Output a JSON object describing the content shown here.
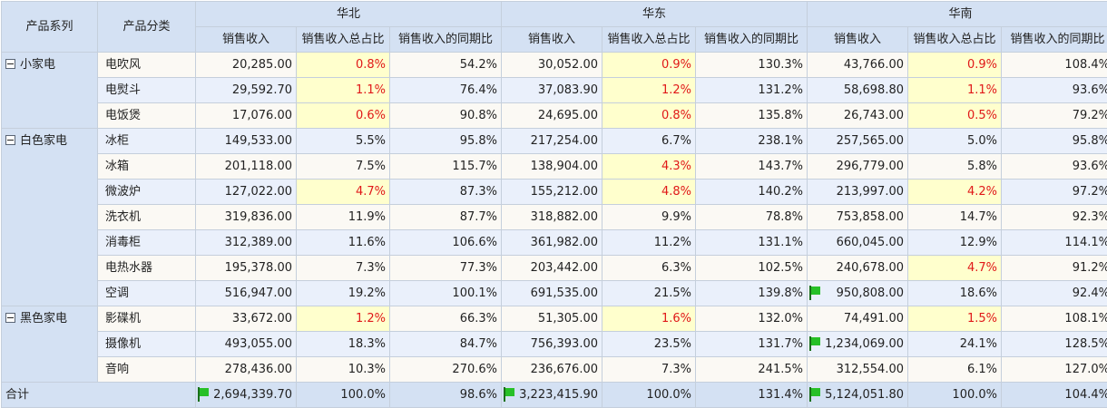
{
  "headers": {
    "series": "产品系列",
    "category": "产品分类",
    "regions": [
      "华北",
      "华东",
      "华南"
    ],
    "metrics": [
      "销售收入",
      "销售收入总占比",
      "销售收入的同期比"
    ]
  },
  "groups": [
    {
      "name": "小家电",
      "rows": [
        {
          "category": "电吹风",
          "values": [
            {
              "rev": "20,285.00",
              "share": "0.8%",
              "yoy": "54.2%",
              "hl": true
            },
            {
              "rev": "30,052.00",
              "share": "0.9%",
              "yoy": "130.3%",
              "hl": true
            },
            {
              "rev": "43,766.00",
              "share": "0.9%",
              "yoy": "108.4%",
              "hl": true
            }
          ]
        },
        {
          "category": "电熨斗",
          "values": [
            {
              "rev": "29,592.70",
              "share": "1.1%",
              "yoy": "76.4%",
              "hl": true
            },
            {
              "rev": "37,083.90",
              "share": "1.2%",
              "yoy": "131.2%",
              "hl": true
            },
            {
              "rev": "58,698.80",
              "share": "1.1%",
              "yoy": "93.6%",
              "hl": true
            }
          ]
        },
        {
          "category": "电饭煲",
          "values": [
            {
              "rev": "17,076.00",
              "share": "0.6%",
              "yoy": "90.8%",
              "hl": true
            },
            {
              "rev": "24,695.00",
              "share": "0.8%",
              "yoy": "135.8%",
              "hl": true
            },
            {
              "rev": "26,743.00",
              "share": "0.5%",
              "yoy": "79.2%",
              "hl": true
            }
          ]
        }
      ]
    },
    {
      "name": "白色家电",
      "rows": [
        {
          "category": "冰柜",
          "values": [
            {
              "rev": "149,533.00",
              "share": "5.5%",
              "yoy": "95.8%"
            },
            {
              "rev": "217,254.00",
              "share": "6.7%",
              "yoy": "238.1%"
            },
            {
              "rev": "257,565.00",
              "share": "5.0%",
              "yoy": "95.8%"
            }
          ]
        },
        {
          "category": "冰箱",
          "values": [
            {
              "rev": "201,118.00",
              "share": "7.5%",
              "yoy": "115.7%"
            },
            {
              "rev": "138,904.00",
              "share": "4.3%",
              "yoy": "143.7%",
              "hl": true
            },
            {
              "rev": "296,779.00",
              "share": "5.8%",
              "yoy": "93.6%"
            }
          ]
        },
        {
          "category": "微波炉",
          "values": [
            {
              "rev": "127,022.00",
              "share": "4.7%",
              "yoy": "87.3%",
              "hl": true
            },
            {
              "rev": "155,212.00",
              "share": "4.8%",
              "yoy": "140.2%",
              "hl": true
            },
            {
              "rev": "213,997.00",
              "share": "4.2%",
              "yoy": "97.2%",
              "hl": true
            }
          ]
        },
        {
          "category": "洗衣机",
          "values": [
            {
              "rev": "319,836.00",
              "share": "11.9%",
              "yoy": "87.7%"
            },
            {
              "rev": "318,882.00",
              "share": "9.9%",
              "yoy": "78.8%"
            },
            {
              "rev": "753,858.00",
              "share": "14.7%",
              "yoy": "92.3%"
            }
          ]
        },
        {
          "category": "消毒柜",
          "values": [
            {
              "rev": "312,389.00",
              "share": "11.6%",
              "yoy": "106.6%"
            },
            {
              "rev": "361,982.00",
              "share": "11.2%",
              "yoy": "131.1%"
            },
            {
              "rev": "660,045.00",
              "share": "12.9%",
              "yoy": "114.1%"
            }
          ]
        },
        {
          "category": "电热水器",
          "values": [
            {
              "rev": "195,378.00",
              "share": "7.3%",
              "yoy": "77.3%"
            },
            {
              "rev": "203,442.00",
              "share": "6.3%",
              "yoy": "102.5%"
            },
            {
              "rev": "240,678.00",
              "share": "4.7%",
              "yoy": "91.2%",
              "hl": true
            }
          ]
        },
        {
          "category": "空调",
          "values": [
            {
              "rev": "516,947.00",
              "share": "19.2%",
              "yoy": "100.1%"
            },
            {
              "rev": "691,535.00",
              "share": "21.5%",
              "yoy": "139.8%"
            },
            {
              "rev": "950,808.00",
              "share": "18.6%",
              "yoy": "92.4%",
              "flag": true
            }
          ]
        }
      ]
    },
    {
      "name": "黑色家电",
      "rows": [
        {
          "category": "影碟机",
          "values": [
            {
              "rev": "33,672.00",
              "share": "1.2%",
              "yoy": "66.3%",
              "hl": true
            },
            {
              "rev": "51,305.00",
              "share": "1.6%",
              "yoy": "132.0%",
              "hl": true
            },
            {
              "rev": "74,491.00",
              "share": "1.5%",
              "yoy": "108.1%",
              "hl": true
            }
          ]
        },
        {
          "category": "摄像机",
          "values": [
            {
              "rev": "493,055.00",
              "share": "18.3%",
              "yoy": "84.7%"
            },
            {
              "rev": "756,393.00",
              "share": "23.5%",
              "yoy": "131.7%"
            },
            {
              "rev": "1,234,069.00",
              "share": "24.1%",
              "yoy": "128.5%",
              "flag": true
            }
          ]
        },
        {
          "category": "音响",
          "values": [
            {
              "rev": "278,436.00",
              "share": "10.3%",
              "yoy": "270.6%"
            },
            {
              "rev": "236,676.00",
              "share": "7.3%",
              "yoy": "241.5%"
            },
            {
              "rev": "312,554.00",
              "share": "6.1%",
              "yoy": "127.0%"
            }
          ]
        }
      ]
    }
  ],
  "total": {
    "label": "合计",
    "values": [
      {
        "rev": "2,694,339.70",
        "share": "100.0%",
        "yoy": "98.6%",
        "flag": true
      },
      {
        "rev": "3,223,415.90",
        "share": "100.0%",
        "yoy": "131.4%",
        "flag": true
      },
      {
        "rev": "5,124,051.80",
        "share": "100.0%",
        "yoy": "104.4%",
        "flag": true
      }
    ]
  },
  "icons": {
    "collapse": "collapse-icon",
    "flag": "green-flag-icon"
  },
  "colors": {
    "header_bg": "#d4e1f3",
    "highlight_bg": "#ffffcd",
    "highlight_text": "#e01818",
    "flag": "#27c027"
  }
}
